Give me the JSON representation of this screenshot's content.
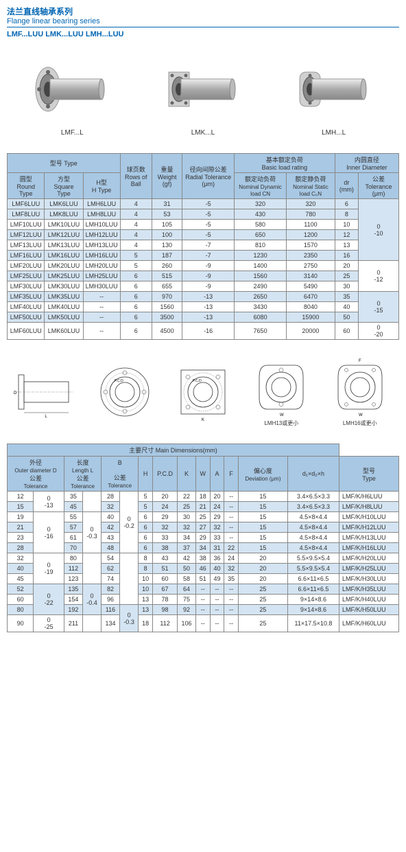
{
  "header": {
    "title_cn": "法兰直线轴承系列",
    "title_en": "Flange linear bearing series",
    "subtitle": "LMF...LUU  LMK...LUU  LMH...LUU"
  },
  "products": [
    {
      "label": "LMF...L"
    },
    {
      "label": "LMK...L"
    },
    {
      "label": "LMH...L"
    }
  ],
  "table1": {
    "headers": {
      "type": "型号 Type",
      "round_cn": "圆型",
      "round_en": "Round Type",
      "square_cn": "方型",
      "square_en": "Square Type",
      "h_cn": "H型",
      "h_en": "H Type",
      "rows_cn": "球页数",
      "rows_en": "Rows of Ball",
      "weight_cn": "重量",
      "weight_en": "Weight (gf)",
      "radial_cn": "径向间隙公差",
      "radial_en": "Radial Tolerance (μm)",
      "load_cn": "基本额定负荷",
      "load_en": "Basic load rating",
      "dyn_cn": "额定动负荷",
      "dyn_en": "Nominal Dynamic load CN",
      "stat_cn": "额定静负荷",
      "stat_en": "Nominal Static load C₀N",
      "inner_cn": "内圆直径",
      "inner_en": "Inner Diameter",
      "dr": "dr (mm)",
      "tol_cn": "公差",
      "tol_en": "Tolerance (μm)"
    },
    "rows": [
      {
        "r": "LMF6LUU",
        "s": "LMK6LUU",
        "h": "LMH6LUU",
        "rob": "4",
        "w": "31",
        "rad": "-5",
        "dyn": "320",
        "stat": "320",
        "dr": "6",
        "blue": true
      },
      {
        "r": "LMF8LUU",
        "s": "LMK8LUU",
        "h": "LMH8LUU",
        "rob": "4",
        "w": "53",
        "rad": "-5",
        "dyn": "430",
        "stat": "780",
        "dr": "8",
        "blue": true
      },
      {
        "r": "LMF10LUU",
        "s": "LMK10LUU",
        "h": "LMH10LUU",
        "rob": "4",
        "w": "105",
        "rad": "-5",
        "dyn": "580",
        "stat": "1100",
        "dr": "10",
        "blue": false
      },
      {
        "r": "LMF12LUU",
        "s": "LMK12LUU",
        "h": "LMH12LUU",
        "rob": "4",
        "w": "100",
        "rad": "-5",
        "dyn": "650",
        "stat": "1200",
        "dr": "12",
        "blue": true
      },
      {
        "r": "LMF13LUU",
        "s": "LMK13LUU",
        "h": "LMH13LUU",
        "rob": "4",
        "w": "130",
        "rad": "-7",
        "dyn": "810",
        "stat": "1570",
        "dr": "13",
        "blue": false
      },
      {
        "r": "LMF16LUU",
        "s": "LMK16LUU",
        "h": "LMH16LUU",
        "rob": "5",
        "w": "187",
        "rad": "-7",
        "dyn": "1230",
        "stat": "2350",
        "dr": "16",
        "blue": true
      },
      {
        "r": "LMF20LUU",
        "s": "LMK20LUU",
        "h": "LMH20LUU",
        "rob": "5",
        "w": "260",
        "rad": "-9",
        "dyn": "1400",
        "stat": "2750",
        "dr": "20",
        "blue": false
      },
      {
        "r": "LMF25LUU",
        "s": "LMK25LUU",
        "h": "LMH25LUU",
        "rob": "6",
        "w": "515",
        "rad": "-9",
        "dyn": "1560",
        "stat": "3140",
        "dr": "25",
        "blue": true
      },
      {
        "r": "LMF30LUU",
        "s": "LMK30LUU",
        "h": "LMH30LUU",
        "rob": "6",
        "w": "655",
        "rad": "-9",
        "dyn": "2490",
        "stat": "5490",
        "dr": "30",
        "blue": false
      },
      {
        "r": "LMF35LUU",
        "s": "LMK35LUU",
        "h": "--",
        "rob": "6",
        "w": "970",
        "rad": "-13",
        "dyn": "2650",
        "stat": "6470",
        "dr": "35",
        "blue": true
      },
      {
        "r": "LMF40LUU",
        "s": "LMK40LUU",
        "h": "--",
        "rob": "6",
        "w": "1560",
        "rad": "-13",
        "dyn": "3430",
        "stat": "8040",
        "dr": "40",
        "blue": false
      },
      {
        "r": "LMF50LUU",
        "s": "LMK50LUU",
        "h": "--",
        "rob": "6",
        "w": "3500",
        "rad": "-13",
        "dyn": "6080",
        "stat": "15900",
        "dr": "50",
        "blue": true
      },
      {
        "r": "LMF60LUU",
        "s": "LMK60LUU",
        "h": "--",
        "rob": "6",
        "w": "4500",
        "rad": "-16",
        "dyn": "7650",
        "stat": "20000",
        "dr": "60",
        "blue": false
      }
    ],
    "tol_groups": [
      {
        "span": 6,
        "val": "0\n-10"
      },
      {
        "span": 3,
        "val": "0\n-12"
      },
      {
        "span": 3,
        "val": "0\n-15"
      },
      {
        "span": 1,
        "val": "0\n-20"
      }
    ]
  },
  "diagrams": {
    "lmh13_label": "LMH13或更小",
    "lmh16_label": "LMH16或更小"
  },
  "table2": {
    "title_cn": "主要尺寸",
    "title_en": "Main Dimensions(mm)",
    "headers": {
      "od_cn": "外径",
      "od_en": "Outer diameter D",
      "tol": "公差",
      "tol_en": "Tolerance",
      "len_cn": "长度",
      "len_en": "Length L",
      "B": "B",
      "H": "H",
      "PCD": "P.C.D",
      "K": "K",
      "W": "W",
      "A": "A",
      "F": "F",
      "dev_cn": "偏心度",
      "dev_en": "Deviation (μm)",
      "dims": "d₁×d₂×h",
      "type_cn": "型号",
      "type_en": "Type"
    },
    "rows": [
      {
        "D": "12",
        "Dtol": "0\n-13",
        "L": "35",
        "Ltol": "",
        "B": "28",
        "Btol": "",
        "H": "5",
        "PCD": "20",
        "K": "22",
        "W": "18",
        "A": "20",
        "F": "--",
        "dev": "15",
        "dims": "3.4×6.5×3.3",
        "type": "LMF/K/H6LUU",
        "blue": false,
        "dspan": 1
      },
      {
        "D": "15",
        "Dtol": "",
        "L": "45",
        "Ltol": "",
        "B": "32",
        "Btol": "",
        "H": "5",
        "PCD": "24",
        "K": "25",
        "W": "21",
        "A": "24",
        "F": "--",
        "dev": "15",
        "dims": "3.4×6.5×3.3",
        "type": "LMF/K/H8LUU",
        "blue": true,
        "dspan": 1
      },
      {
        "D": "19",
        "Dtol": "",
        "L": "55",
        "Ltol": "",
        "B": "40",
        "Btol": "",
        "H": "6",
        "PCD": "29",
        "K": "30",
        "W": "25",
        "A": "29",
        "F": "--",
        "dev": "15",
        "dims": "4.5×8×4.4",
        "type": "LMF/K/H10LUU",
        "blue": false
      },
      {
        "D": "21",
        "Dtol": "0\n-16",
        "L": "57",
        "Ltol": "0\n-0.3",
        "B": "42",
        "Btol": "",
        "H": "6",
        "PCD": "32",
        "K": "32",
        "W": "27",
        "A": "32",
        "F": "--",
        "dev": "15",
        "dims": "4.5×8×4.4",
        "type": "LMF/K/H12LUU",
        "blue": true
      },
      {
        "D": "23",
        "Dtol": "",
        "L": "61",
        "Ltol": "",
        "B": "43",
        "Btol": "0\n-0.2",
        "H": "6",
        "PCD": "33",
        "K": "34",
        "W": "29",
        "A": "33",
        "F": "--",
        "dev": "15",
        "dims": "4.5×8×4.4",
        "type": "LMF/K/H13LUU",
        "blue": false
      },
      {
        "D": "28",
        "Dtol": "",
        "L": "70",
        "Ltol": "",
        "B": "48",
        "Btol": "",
        "H": "6",
        "PCD": "38",
        "K": "37",
        "W": "34",
        "A": "31",
        "F": "22",
        "dev": "15",
        "dims": "4.5×8×4.4",
        "type": "LMF/K/H16LUU",
        "blue": true
      },
      {
        "D": "32",
        "Dtol": "",
        "L": "80",
        "Ltol": "",
        "B": "54",
        "Btol": "",
        "H": "8",
        "PCD": "43",
        "K": "42",
        "W": "38",
        "A": "36",
        "F": "24",
        "dev": "20",
        "dims": "5.5×9.5×5.4",
        "type": "LMF/K/H20LUU",
        "blue": false
      },
      {
        "D": "40",
        "Dtol": "0\n-19",
        "L": "112",
        "Ltol": "",
        "B": "62",
        "Btol": "",
        "H": "8",
        "PCD": "51",
        "K": "50",
        "W": "46",
        "A": "40",
        "F": "32",
        "dev": "20",
        "dims": "5.5×9.5×5.4",
        "type": "LMF/K/H25LUU",
        "blue": true
      },
      {
        "D": "45",
        "Dtol": "",
        "L": "123",
        "Ltol": "",
        "B": "74",
        "Btol": "",
        "H": "10",
        "PCD": "60",
        "K": "58",
        "W": "51",
        "A": "49",
        "F": "35",
        "dev": "20",
        "dims": "6.6×11×6.5",
        "type": "LMF/K/H30LUU",
        "blue": false
      },
      {
        "D": "52",
        "Dtol": "",
        "L": "135",
        "Ltol": "",
        "B": "82",
        "Btol": "",
        "H": "10",
        "PCD": "67",
        "K": "64",
        "W": "--",
        "A": "--",
        "F": "--",
        "dev": "25",
        "dims": "6.6×11×6.5",
        "type": "LMF/K/H35LUU",
        "blue": true
      },
      {
        "D": "60",
        "Dtol": "0\n-22",
        "L": "154",
        "Ltol": "0\n-0.4",
        "B": "96",
        "Btol": "",
        "H": "13",
        "PCD": "78",
        "K": "75",
        "W": "--",
        "A": "--",
        "F": "--",
        "dev": "25",
        "dims": "9×14×8.6",
        "type": "LMF/K/H40LUU",
        "blue": false
      },
      {
        "D": "80",
        "Dtol": "",
        "L": "192",
        "Ltol": "",
        "B": "116",
        "Btol": "0\n-0.3",
        "H": "13",
        "PCD": "98",
        "K": "92",
        "W": "--",
        "A": "--",
        "F": "--",
        "dev": "25",
        "dims": "9×14×8.6",
        "type": "LMF/K/H50LUU",
        "blue": true
      },
      {
        "D": "90",
        "Dtol": "0\n-25",
        "L": "211",
        "Ltol": "",
        "B": "134",
        "Btol": "",
        "H": "18",
        "PCD": "112",
        "K": "106",
        "W": "--",
        "A": "--",
        "F": "--",
        "dev": "25",
        "dims": "11×17.5×10.8",
        "type": "LMF/K/H60LUU",
        "blue": false
      }
    ]
  },
  "colors": {
    "header_blue": "#a8c8e4",
    "row_blue": "#d4e4f2",
    "brand_blue": "#0066b3",
    "border": "#888888"
  }
}
